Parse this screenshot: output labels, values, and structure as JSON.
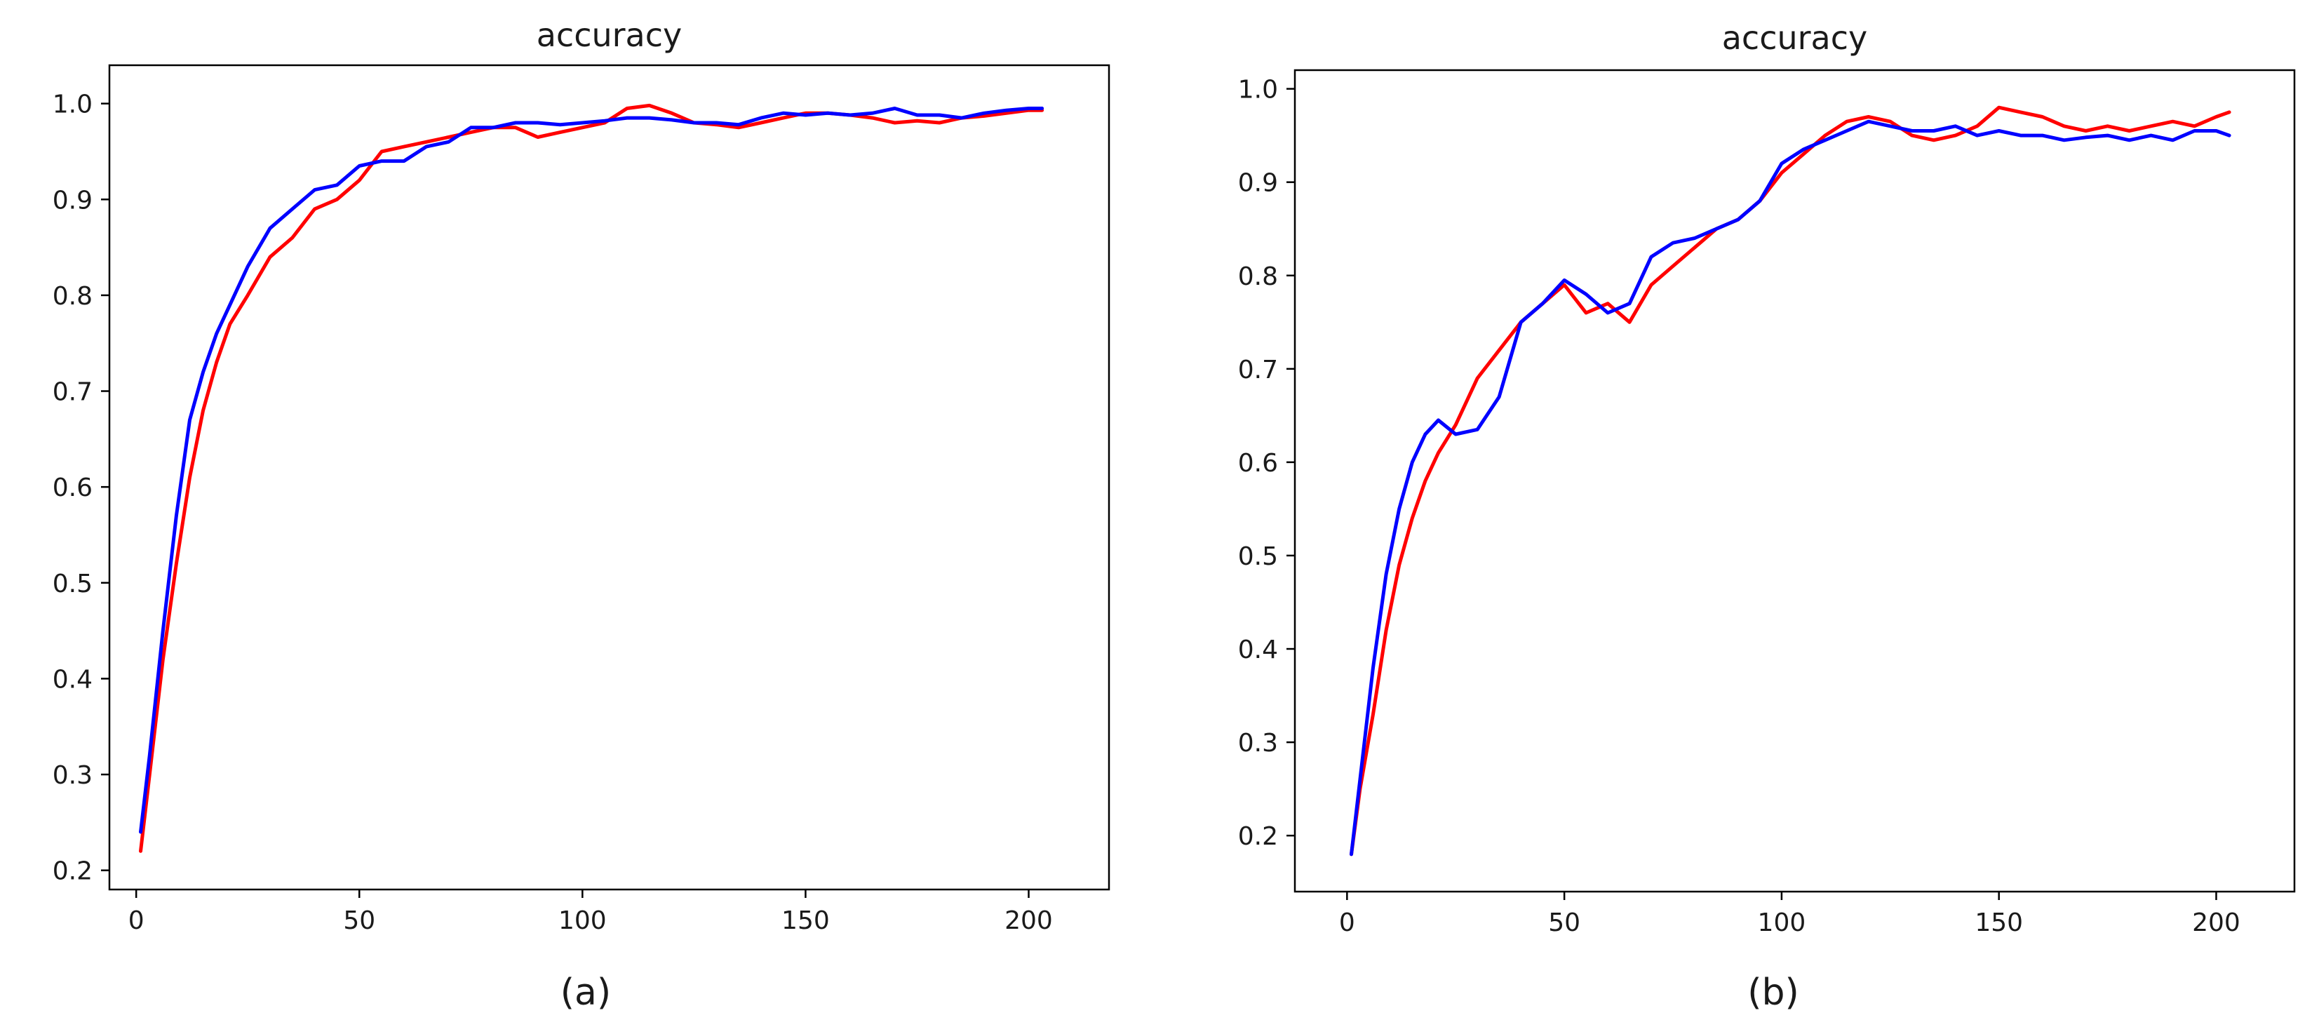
{
  "figure": {
    "captions": [
      "(a)",
      "(b)"
    ]
  },
  "chart_data": [
    {
      "type": "line",
      "title": "accuracy",
      "caption": "(a)",
      "xlabel": "",
      "ylabel": "",
      "xlim": [
        -6,
        218
      ],
      "ylim": [
        0.18,
        1.04
      ],
      "xticks": [
        0,
        50,
        100,
        150,
        200
      ],
      "yticks": [
        0.2,
        0.3,
        0.4,
        0.5,
        0.6,
        0.7,
        0.8,
        0.9,
        1.0
      ],
      "xtick_labels": [
        "0",
        "50",
        "100",
        "150",
        "200"
      ],
      "ytick_labels": [
        "0.2",
        "0.3",
        "0.4",
        "0.5",
        "0.6",
        "0.7",
        "0.8",
        "0.9",
        "1.0"
      ],
      "grid": false,
      "legend": "none",
      "series": [
        {
          "color": "#ff0000",
          "x": [
            1,
            3,
            6,
            9,
            12,
            15,
            18,
            21,
            25,
            30,
            35,
            40,
            45,
            50,
            55,
            60,
            65,
            70,
            75,
            80,
            85,
            90,
            95,
            100,
            105,
            110,
            115,
            120,
            125,
            130,
            135,
            140,
            145,
            150,
            155,
            160,
            165,
            170,
            175,
            180,
            185,
            190,
            195,
            200,
            203
          ],
          "values": [
            0.22,
            0.3,
            0.42,
            0.52,
            0.61,
            0.68,
            0.73,
            0.77,
            0.8,
            0.84,
            0.86,
            0.89,
            0.9,
            0.92,
            0.95,
            0.955,
            0.96,
            0.965,
            0.97,
            0.975,
            0.975,
            0.965,
            0.97,
            0.975,
            0.98,
            0.995,
            0.998,
            0.99,
            0.98,
            0.978,
            0.975,
            0.98,
            0.985,
            0.99,
            0.99,
            0.988,
            0.985,
            0.98,
            0.982,
            0.98,
            0.985,
            0.987,
            0.99,
            0.993,
            0.993
          ]
        },
        {
          "color": "#0000ff",
          "x": [
            1,
            3,
            6,
            9,
            12,
            15,
            18,
            21,
            25,
            30,
            35,
            40,
            45,
            50,
            55,
            60,
            65,
            70,
            75,
            80,
            85,
            90,
            95,
            100,
            105,
            110,
            115,
            120,
            125,
            130,
            135,
            140,
            145,
            150,
            155,
            160,
            165,
            170,
            175,
            180,
            185,
            190,
            195,
            200,
            203
          ],
          "values": [
            0.24,
            0.32,
            0.45,
            0.57,
            0.67,
            0.72,
            0.76,
            0.79,
            0.83,
            0.87,
            0.89,
            0.91,
            0.915,
            0.935,
            0.94,
            0.94,
            0.955,
            0.96,
            0.975,
            0.975,
            0.98,
            0.98,
            0.978,
            0.98,
            0.982,
            0.985,
            0.985,
            0.983,
            0.98,
            0.98,
            0.978,
            0.985,
            0.99,
            0.988,
            0.99,
            0.988,
            0.99,
            0.995,
            0.988,
            0.988,
            0.985,
            0.99,
            0.993,
            0.995,
            0.995
          ]
        }
      ]
    },
    {
      "type": "line",
      "title": "accuracy",
      "caption": "(b)",
      "xlabel": "",
      "ylabel": "",
      "xlim": [
        -12,
        218
      ],
      "ylim": [
        0.14,
        1.02
      ],
      "xticks": [
        0,
        50,
        100,
        150,
        200
      ],
      "yticks": [
        0.2,
        0.3,
        0.4,
        0.5,
        0.6,
        0.7,
        0.8,
        0.9,
        1.0
      ],
      "xtick_labels": [
        "0",
        "50",
        "100",
        "150",
        "200"
      ],
      "ytick_labels": [
        "0.2",
        "0.3",
        "0.4",
        "0.5",
        "0.6",
        "0.7",
        "0.8",
        "0.9",
        "1.0"
      ],
      "grid": false,
      "legend": "none",
      "series": [
        {
          "color": "#ff0000",
          "x": [
            1,
            3,
            6,
            9,
            12,
            15,
            18,
            21,
            25,
            30,
            35,
            40,
            45,
            50,
            55,
            60,
            65,
            70,
            75,
            80,
            85,
            90,
            95,
            100,
            105,
            110,
            115,
            120,
            125,
            130,
            135,
            140,
            145,
            150,
            155,
            160,
            165,
            170,
            175,
            180,
            185,
            190,
            195,
            200,
            203
          ],
          "values": [
            0.18,
            0.25,
            0.33,
            0.42,
            0.49,
            0.54,
            0.58,
            0.61,
            0.64,
            0.69,
            0.72,
            0.75,
            0.77,
            0.79,
            0.76,
            0.77,
            0.75,
            0.79,
            0.81,
            0.83,
            0.85,
            0.86,
            0.88,
            0.91,
            0.93,
            0.95,
            0.965,
            0.97,
            0.965,
            0.95,
            0.945,
            0.95,
            0.96,
            0.98,
            0.975,
            0.97,
            0.96,
            0.955,
            0.96,
            0.955,
            0.96,
            0.965,
            0.96,
            0.97,
            0.975
          ]
        },
        {
          "color": "#0000ff",
          "x": [
            1,
            3,
            6,
            9,
            12,
            15,
            18,
            21,
            25,
            30,
            35,
            40,
            45,
            50,
            55,
            60,
            65,
            70,
            75,
            80,
            85,
            90,
            95,
            100,
            105,
            110,
            115,
            120,
            125,
            130,
            135,
            140,
            145,
            150,
            155,
            160,
            165,
            170,
            175,
            180,
            185,
            190,
            195,
            200,
            203
          ],
          "values": [
            0.18,
            0.26,
            0.38,
            0.48,
            0.55,
            0.6,
            0.63,
            0.645,
            0.63,
            0.635,
            0.67,
            0.75,
            0.77,
            0.795,
            0.78,
            0.76,
            0.77,
            0.82,
            0.835,
            0.84,
            0.85,
            0.86,
            0.88,
            0.92,
            0.935,
            0.945,
            0.955,
            0.965,
            0.96,
            0.955,
            0.955,
            0.96,
            0.95,
            0.955,
            0.95,
            0.95,
            0.945,
            0.948,
            0.95,
            0.945,
            0.95,
            0.945,
            0.955,
            0.955,
            0.95
          ]
        }
      ]
    }
  ]
}
